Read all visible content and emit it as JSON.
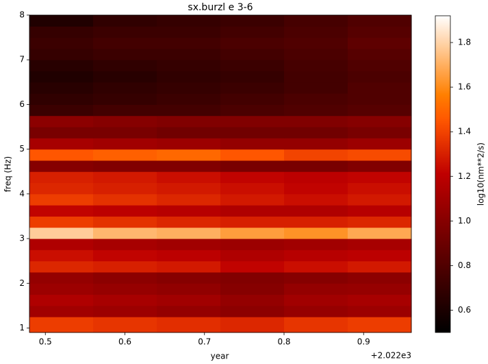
{
  "chart_data": {
    "type": "heatmap",
    "title": "sx.burzl e 3-6",
    "x_label": "year",
    "y_label": "freq (Hz)",
    "x_offset_label": "+2.022e3",
    "colorbar_label": "log10(nm**2/s)",
    "colormap": "gist_heat",
    "x_edges": [
      0.48,
      0.56,
      0.64,
      0.72,
      0.8,
      0.88,
      0.96
    ],
    "y_edges": [
      0.9,
      1.25,
      1.5,
      1.75,
      2.0,
      2.25,
      2.5,
      2.75,
      3.0,
      3.25,
      3.5,
      3.75,
      4.0,
      4.25,
      4.5,
      4.75,
      5.0,
      5.25,
      5.5,
      5.75,
      6.0,
      6.25,
      6.5,
      6.75,
      7.0,
      7.25,
      7.5,
      7.75,
      8.0
    ],
    "values": [
      [
        1.38,
        1.36,
        1.34,
        1.32,
        1.36,
        1.38
      ],
      [
        1.1,
        1.08,
        1.05,
        1.02,
        1.06,
        1.08
      ],
      [
        1.15,
        1.12,
        1.1,
        1.05,
        1.1,
        1.12
      ],
      [
        1.08,
        1.06,
        1.04,
        1.0,
        1.05,
        1.06
      ],
      [
        1.05,
        1.02,
        1.0,
        0.98,
        1.0,
        1.02
      ],
      [
        1.32,
        1.3,
        1.28,
        1.22,
        1.25,
        1.28
      ],
      [
        1.25,
        1.22,
        1.2,
        1.15,
        1.18,
        1.2
      ],
      [
        1.15,
        1.12,
        1.1,
        1.08,
        1.1,
        1.12
      ],
      [
        1.78,
        1.72,
        1.7,
        1.65,
        1.62,
        1.68
      ],
      [
        1.38,
        1.35,
        1.32,
        1.3,
        1.3,
        1.32
      ],
      [
        1.22,
        1.2,
        1.18,
        1.15,
        1.15,
        1.18
      ],
      [
        1.38,
        1.35,
        1.32,
        1.28,
        1.25,
        1.28
      ],
      [
        1.32,
        1.3,
        1.28,
        1.25,
        1.22,
        1.25
      ],
      [
        1.3,
        1.28,
        1.25,
        1.22,
        1.2,
        1.22
      ],
      [
        1.0,
        0.98,
        0.98,
        0.95,
        0.95,
        0.98
      ],
      [
        1.45,
        1.48,
        1.5,
        1.45,
        1.4,
        1.42
      ],
      [
        1.12,
        1.1,
        1.08,
        1.05,
        1.05,
        1.08
      ],
      [
        0.95,
        0.95,
        0.92,
        0.92,
        0.92,
        0.95
      ],
      [
        1.02,
        1.0,
        0.98,
        0.98,
        0.98,
        1.0
      ],
      [
        0.72,
        0.75,
        0.75,
        0.78,
        0.8,
        0.82
      ],
      [
        0.68,
        0.7,
        0.72,
        0.75,
        0.78,
        0.8
      ],
      [
        0.65,
        0.68,
        0.7,
        0.72,
        0.75,
        0.8
      ],
      [
        0.62,
        0.65,
        0.68,
        0.7,
        0.75,
        0.78
      ],
      [
        0.65,
        0.68,
        0.7,
        0.72,
        0.76,
        0.8
      ],
      [
        0.7,
        0.72,
        0.72,
        0.75,
        0.78,
        0.82
      ],
      [
        0.72,
        0.75,
        0.75,
        0.78,
        0.8,
        0.85
      ],
      [
        0.7,
        0.72,
        0.72,
        0.75,
        0.78,
        0.82
      ],
      [
        0.62,
        0.68,
        0.7,
        0.72,
        0.76,
        0.8
      ]
    ],
    "xlim": [
      0.48,
      0.96
    ],
    "xticks": [
      0.5,
      0.6,
      0.7,
      0.8,
      0.9
    ],
    "ylim": [
      0.9,
      8
    ],
    "yticks": [
      1,
      2,
      3,
      4,
      5,
      6,
      7,
      8
    ],
    "clim": [
      0.5,
      1.92
    ],
    "cticks": [
      0.6,
      0.8,
      1.0,
      1.2,
      1.4,
      1.6,
      1.8
    ]
  }
}
